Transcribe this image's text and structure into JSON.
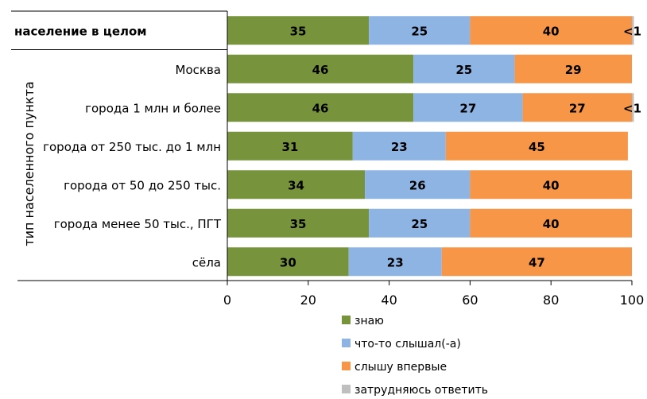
{
  "chart_data": {
    "type": "bar",
    "orientation": "horizontal",
    "stacked": true,
    "group_label": "тип населенного пункта",
    "categories": [
      "население в целом",
      "Москва",
      "города 1 млн и более",
      "города от 250 тыс. до 1 млн",
      "города от 50 до 250 тыс.",
      "города менее 50 тыс., ПГТ",
      "сёла"
    ],
    "bold_categories": [
      "население в целом"
    ],
    "series": [
      {
        "name": "знаю",
        "color": "#77933c",
        "values": [
          35,
          46,
          46,
          31,
          34,
          35,
          30
        ],
        "labels": [
          "35",
          "46",
          "46",
          "31",
          "34",
          "35",
          "30"
        ]
      },
      {
        "name": "что-то слышал(-а)",
        "color": "#8eb4e3",
        "values": [
          25,
          25,
          27,
          23,
          26,
          25,
          23
        ],
        "labels": [
          "25",
          "25",
          "27",
          "23",
          "26",
          "25",
          "23"
        ]
      },
      {
        "name": "слышу впервые",
        "color": "#f79646",
        "values": [
          40,
          29,
          27,
          45,
          40,
          40,
          47
        ],
        "labels": [
          "40",
          "29",
          "27",
          "45",
          "40",
          "40",
          "47"
        ]
      },
      {
        "name": "затрудняюсь ответить",
        "color": "#bfbfbf",
        "values": [
          0.5,
          0,
          0.5,
          0,
          0,
          0,
          0
        ],
        "labels": [
          "<1",
          "",
          "<1",
          "",
          "",
          "",
          ""
        ]
      }
    ],
    "xlim": [
      0,
      100
    ],
    "xticks": [
      "0",
      "20",
      "40",
      "60",
      "80",
      "100"
    ],
    "legend_position": "bottom",
    "grid": false
  }
}
